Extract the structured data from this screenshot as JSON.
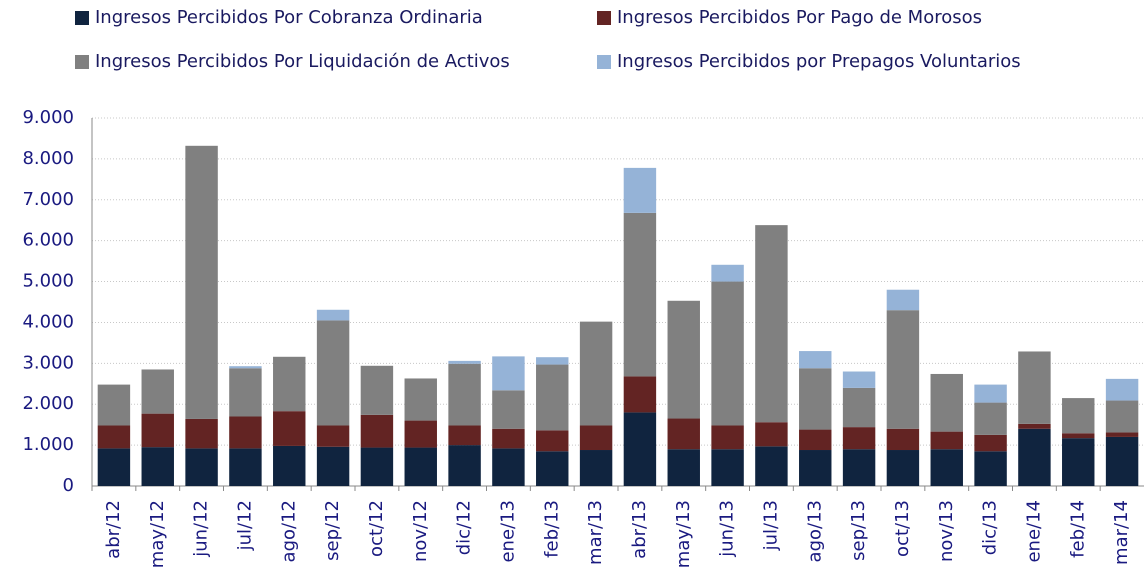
{
  "chart_data": {
    "type": "stacked-bar",
    "categories": [
      "abr/12",
      "may/12",
      "jun/12",
      "jul/12",
      "ago/12",
      "sep/12",
      "oct/12",
      "nov/12",
      "dic/12",
      "ene/13",
      "feb/13",
      "mar/13",
      "abr/13",
      "may/13",
      "jun/13",
      "jul/13",
      "ago/13",
      "sep/13",
      "oct/13",
      "nov/13",
      "dic/13",
      "ene/14",
      "feb/14",
      "mar/14"
    ],
    "series": [
      {
        "name": "Ingresos Percibidos Por Cobranza Ordinaria",
        "color": "#10243f",
        "values": [
          920,
          950,
          920,
          920,
          980,
          960,
          940,
          940,
          1000,
          920,
          850,
          880,
          1800,
          900,
          900,
          970,
          880,
          900,
          880,
          900,
          850,
          1400,
          1170,
          1200
        ]
      },
      {
        "name": "Ingresos Percibidos Por Pago de Morosos",
        "color": "#632423",
        "values": [
          560,
          820,
          720,
          780,
          850,
          520,
          800,
          660,
          480,
          480,
          510,
          600,
          880,
          750,
          580,
          590,
          500,
          540,
          520,
          430,
          400,
          120,
          120,
          110
        ]
      },
      {
        "name": "Ingresos Percibidos Por Liquidación de Activos",
        "color": "#808080",
        "values": [
          1000,
          1080,
          6680,
          1180,
          1330,
          2570,
          1200,
          1030,
          1510,
          940,
          1610,
          2540,
          4000,
          2880,
          3520,
          4820,
          1500,
          960,
          2900,
          1410,
          790,
          1770,
          860,
          780
        ]
      },
      {
        "name": "Ingresos Percibidos por Prepagos Voluntarios",
        "color": "#95b3d7",
        "values": [
          0,
          0,
          0,
          50,
          0,
          260,
          0,
          0,
          70,
          830,
          180,
          0,
          1100,
          0,
          410,
          0,
          420,
          400,
          500,
          0,
          440,
          0,
          0,
          530
        ]
      }
    ],
    "ylim": [
      0,
      9000
    ],
    "yticks": [
      0,
      {
        "value": 1000,
        "label": "1.000"
      },
      {
        "value": 2000,
        "label": "2.000"
      },
      {
        "value": 3000,
        "label": "3.000"
      },
      {
        "value": 4000,
        "label": "4.000"
      },
      {
        "value": 5000,
        "label": "5.000"
      },
      {
        "value": 6000,
        "label": "6.000"
      },
      {
        "value": 7000,
        "label": "7.000"
      },
      {
        "value": 8000,
        "label": "8.000"
      },
      {
        "value": 9000,
        "label": "9.000"
      }
    ],
    "grid": true,
    "legend": "top"
  }
}
